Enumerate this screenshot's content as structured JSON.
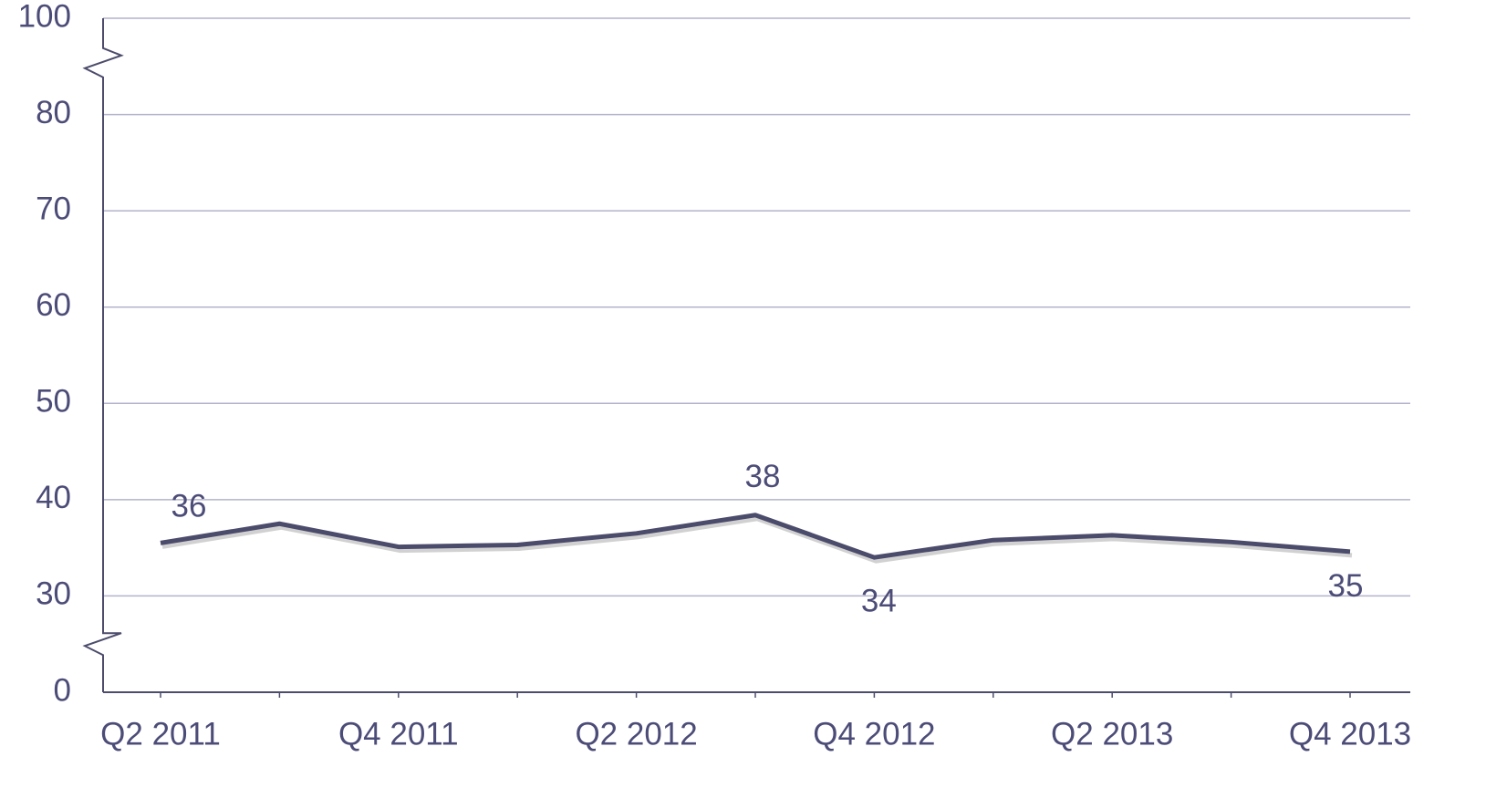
{
  "chart_data": {
    "type": "line",
    "categories": [
      "Q2 2011",
      null,
      "Q4 2011",
      null,
      "Q2 2012",
      null,
      "Q4 2012",
      null,
      "Q2 2013",
      null,
      "Q4 2013"
    ],
    "series": [
      {
        "color": "#4b4b6b",
        "values": [
          35.5,
          37.5,
          35.1,
          35.3,
          36.5,
          38.4,
          34.0,
          35.8,
          36.3,
          35.6,
          34.6
        ],
        "value_labels": [
          "36",
          null,
          null,
          null,
          null,
          "38",
          "34",
          null,
          null,
          null,
          "35"
        ]
      }
    ],
    "ylim": [
      0,
      100
    ],
    "yticks": [
      0,
      30,
      40,
      50,
      60,
      70,
      80,
      100
    ],
    "axis_break": true,
    "grid": true
  }
}
